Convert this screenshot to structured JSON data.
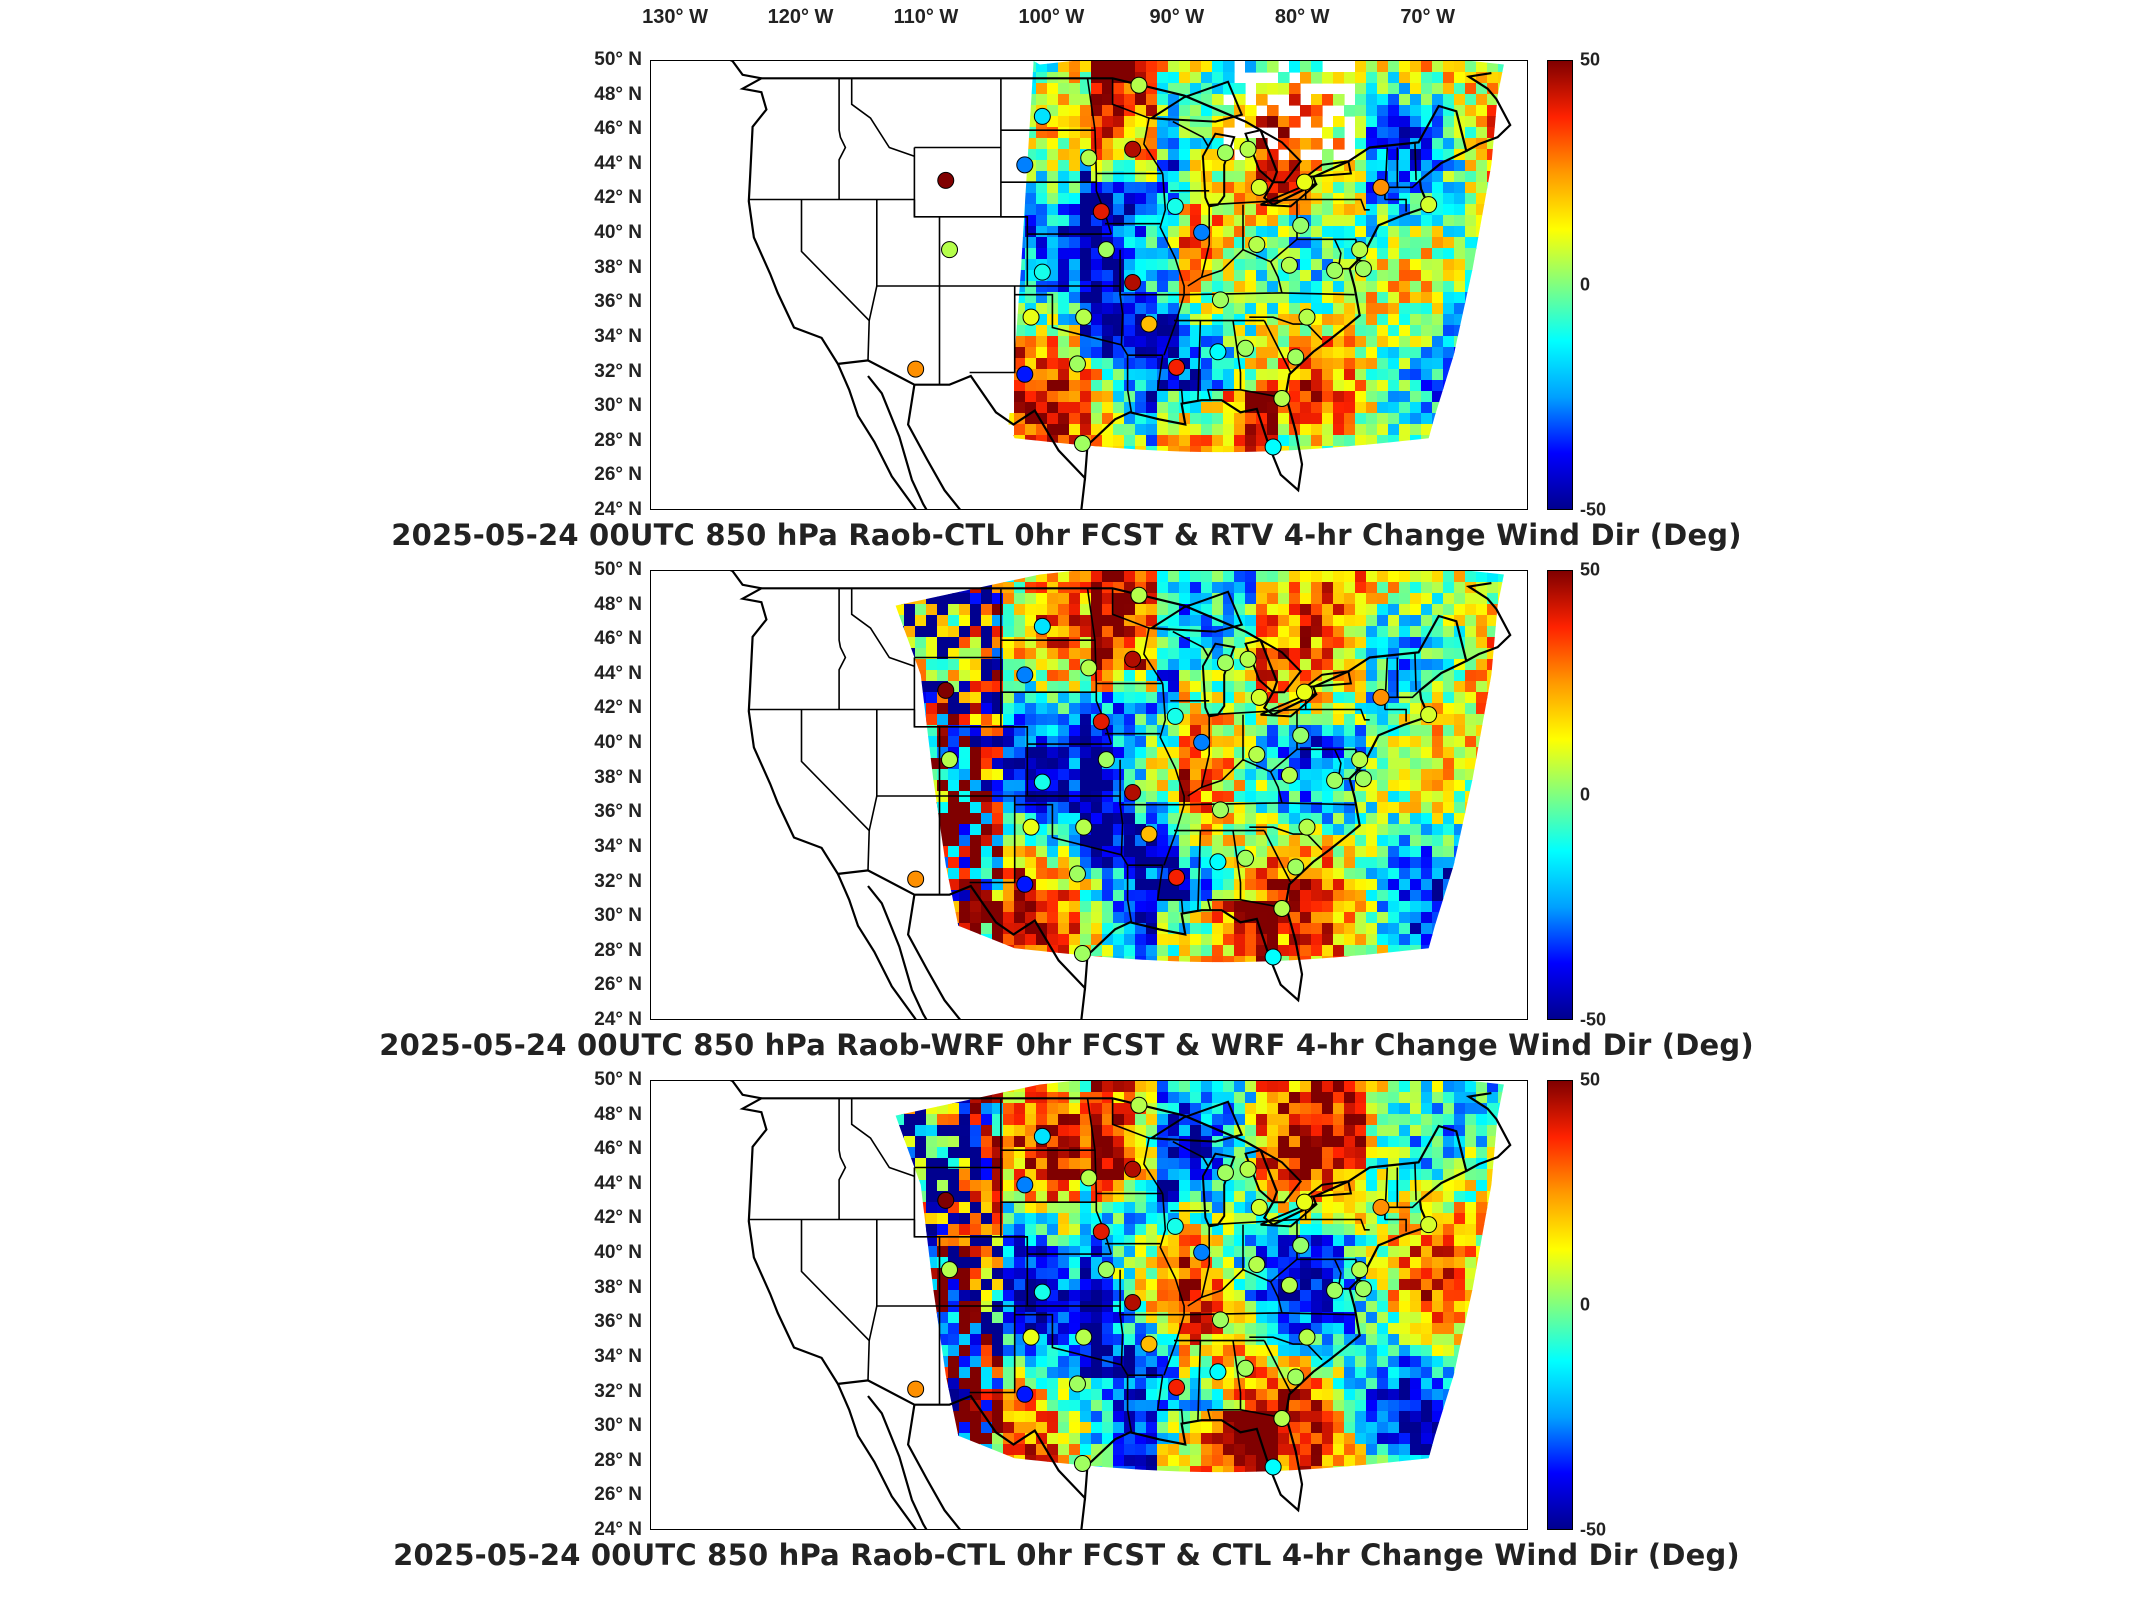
{
  "lon_labels": [
    "130° W",
    "120° W",
    "110° W",
    "100° W",
    "90° W",
    "80° W",
    "70° W"
  ],
  "lat_labels": [
    "50° N",
    "48° N",
    "46° N",
    "44° N",
    "42° N",
    "40° N",
    "38° N",
    "36° N",
    "34° N",
    "32° N",
    "30° N",
    "28° N",
    "26° N",
    "24° N"
  ],
  "colorbar": {
    "max": "50",
    "mid": "0",
    "min": "-50",
    "colors": [
      "#00008f",
      "#0000ff",
      "#00a0ff",
      "#00ffff",
      "#80ff80",
      "#ffff00",
      "#ff9900",
      "#ff2200",
      "#800000"
    ]
  },
  "panels": [
    {
      "title": "2025-05-24 00UTC 850 hPa Raob-CTL 0hr FCST & RTV 4-hr Change Wind Dir (Deg)"
    },
    {
      "title": "2025-05-24 00UTC 850 hPa Raob-WRF 0hr FCST & WRF 4-hr Change Wind Dir (Deg)"
    },
    {
      "title": "2025-05-24 00UTC 850 hPa Raob-CTL 0hr FCST & CTL 4-hr Change Wind Dir (Deg)"
    }
  ],
  "stations": [
    {
      "lon": -108.5,
      "lat": 43.1,
      "value": 50
    },
    {
      "lon": -108.2,
      "lat": 39.1,
      "value": 5
    },
    {
      "lon": -110.9,
      "lat": 32.2,
      "value": 25
    },
    {
      "lon": -100.8,
      "lat": 46.8,
      "value": -15
    },
    {
      "lon": -97.1,
      "lat": 44.4,
      "value": 5
    },
    {
      "lon": -102.2,
      "lat": 44.0,
      "value": -25
    },
    {
      "lon": -93.6,
      "lat": 44.9,
      "value": 45
    },
    {
      "lon": -93.1,
      "lat": 48.6,
      "value": 5
    },
    {
      "lon": -96.1,
      "lat": 41.3,
      "value": 40
    },
    {
      "lon": -90.2,
      "lat": 41.6,
      "value": -10
    },
    {
      "lon": -88.1,
      "lat": 40.1,
      "value": -25
    },
    {
      "lon": -86.2,
      "lat": 44.7,
      "value": 3
    },
    {
      "lon": -84.4,
      "lat": 44.9,
      "value": 5
    },
    {
      "lon": -83.5,
      "lat": 42.7,
      "value": 8
    },
    {
      "lon": -79.9,
      "lat": 43.0,
      "value": 10
    },
    {
      "lon": -73.8,
      "lat": 42.7,
      "value": 25
    },
    {
      "lon": -70.0,
      "lat": 41.7,
      "value": 8
    },
    {
      "lon": -80.2,
      "lat": 40.5,
      "value": 2
    },
    {
      "lon": -83.7,
      "lat": 39.4,
      "value": 5
    },
    {
      "lon": -95.7,
      "lat": 39.1,
      "value": 3
    },
    {
      "lon": -100.8,
      "lat": 37.8,
      "value": -10
    },
    {
      "lon": -93.6,
      "lat": 37.2,
      "value": 45
    },
    {
      "lon": -86.6,
      "lat": 36.2,
      "value": 3
    },
    {
      "lon": -81.1,
      "lat": 38.2,
      "value": 5
    },
    {
      "lon": -77.5,
      "lat": 37.9,
      "value": 3
    },
    {
      "lon": -75.5,
      "lat": 39.1,
      "value": 5
    },
    {
      "lon": -75.2,
      "lat": 38.0,
      "value": 3
    },
    {
      "lon": -101.7,
      "lat": 35.2,
      "value": 10
    },
    {
      "lon": -97.5,
      "lat": 35.2,
      "value": 5
    },
    {
      "lon": -92.3,
      "lat": 34.8,
      "value": 20
    },
    {
      "lon": -98.0,
      "lat": 32.5,
      "value": 3
    },
    {
      "lon": -102.2,
      "lat": 31.9,
      "value": -35
    },
    {
      "lon": -97.6,
      "lat": 27.9,
      "value": 3
    },
    {
      "lon": -90.1,
      "lat": 32.3,
      "value": 38
    },
    {
      "lon": -86.8,
      "lat": 33.2,
      "value": -12
    },
    {
      "lon": -84.6,
      "lat": 33.4,
      "value": 3
    },
    {
      "lon": -80.6,
      "lat": 32.9,
      "value": 3
    },
    {
      "lon": -81.7,
      "lat": 30.5,
      "value": 5
    },
    {
      "lon": -82.4,
      "lat": 27.7,
      "value": -12
    },
    {
      "lon": -79.7,
      "lat": 35.2,
      "value": 5
    }
  ]
}
